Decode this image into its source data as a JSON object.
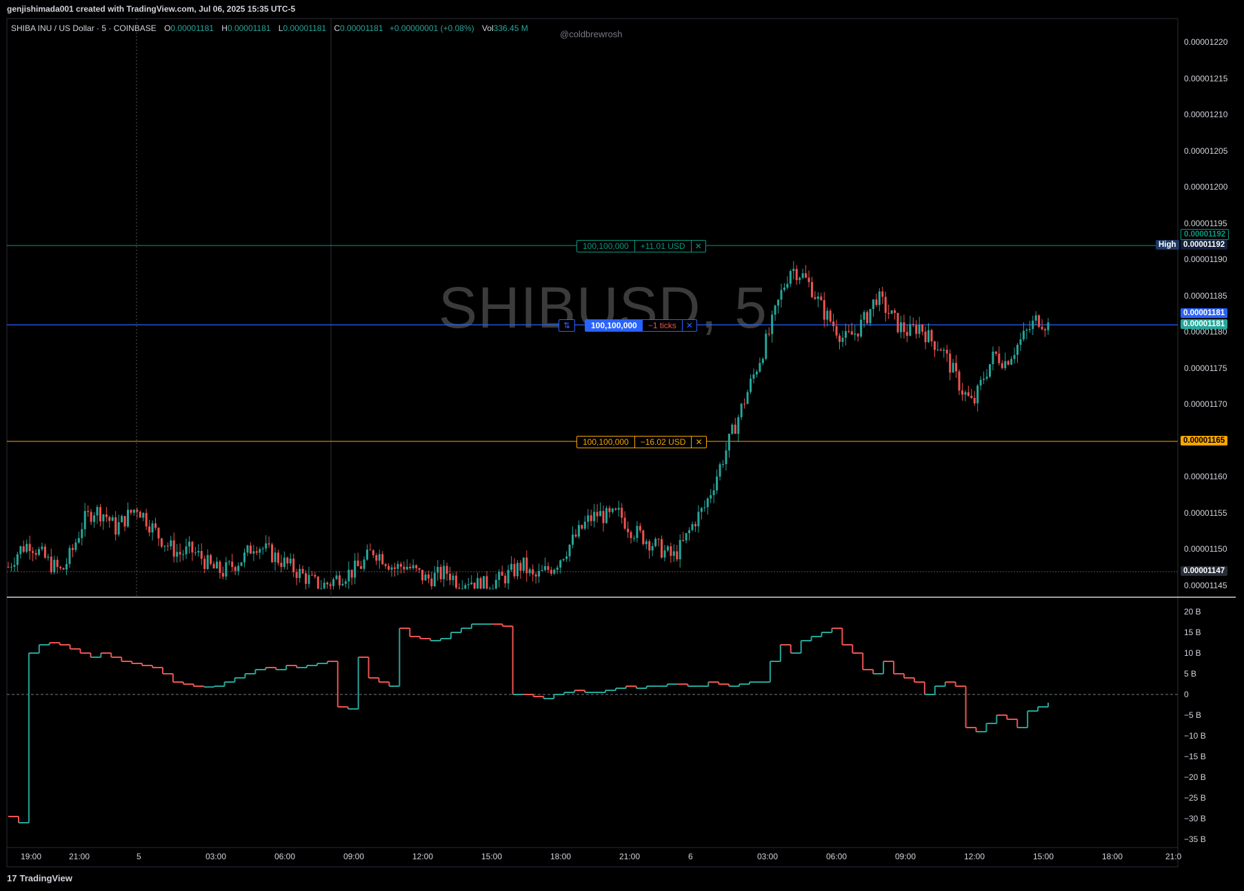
{
  "header": {
    "caption": "genjishimada001 created with TradingView.com, Jul 06, 2025 15:35 UTC-5"
  },
  "legend": {
    "symbol": "SHIBA INU / US Dollar · 5 · COINBASE",
    "o_label": "O",
    "o_value": "0.00001181",
    "h_label": "H",
    "h_value": "0.00001181",
    "l_label": "L",
    "l_value": "0.00001181",
    "c_label": "C",
    "c_value": "0.00001181",
    "change": "+0.00000001 (+0.08%)",
    "vol_label": "Vol",
    "vol_value": "336.45 M"
  },
  "credit": "@coldbrewrosh",
  "watermark": "SHIBUSD, 5",
  "positions": {
    "take_profit": {
      "qty": "100,100,000",
      "pnl": "+11.01 USD",
      "close": "✕",
      "color": "#089981"
    },
    "entry": {
      "icon": "⇅",
      "qty": "100,100,000",
      "pnl": "−1 ticks",
      "close": "✕",
      "color": "#2962ff"
    },
    "stop_loss": {
      "qty": "100,100,000",
      "pnl": "−16.02 USD",
      "close": "✕",
      "color": "#f7a600"
    }
  },
  "price_axis": {
    "ticks": [
      "0.00001220",
      "0.00001215",
      "0.00001210",
      "0.00001205",
      "0.00001200",
      "0.00001195",
      "0.00001190",
      "0.00001185",
      "0.00001180",
      "0.00001175",
      "0.00001170",
      "0.00001165",
      "0.00001160",
      "0.00001155",
      "0.00001150",
      "0.00001145"
    ],
    "tags": {
      "tp_value": "0.00001192",
      "high_label": "High",
      "high_value": "0.00001192",
      "entry_value": "0.00001181",
      "last_value": "0.00001181",
      "sl_value": "0.00001165",
      "low_value": "0.00001147"
    }
  },
  "osc_axis": {
    "ticks": [
      "20 B",
      "15 B",
      "10 B",
      "5 B",
      "0",
      "−5 B",
      "−10 B",
      "−15 B",
      "−20 B",
      "−25 B",
      "−30 B",
      "−35 B"
    ]
  },
  "time_axis": {
    "ticks": [
      "19:00",
      "21:00",
      "5",
      "03:00",
      "06:00",
      "09:00",
      "12:00",
      "15:00",
      "18:00",
      "21:00",
      "6",
      "03:00",
      "06:00",
      "09:00",
      "12:00",
      "15:00",
      "18:00",
      "21:0"
    ]
  },
  "footer": {
    "brand": "TradingView"
  },
  "colors": {
    "up": "#26a69a",
    "down": "#ef5350",
    "grid": "#1e222d"
  },
  "chart_data": {
    "type": "candlestick",
    "price_path": [
      1.1477,
      1.15,
      1.151,
      1.1495,
      1.148,
      1.147,
      1.15,
      1.154,
      1.1555,
      1.155,
      1.153,
      1.1545,
      1.156,
      1.154,
      1.152,
      1.1505,
      1.1495,
      1.15,
      1.149,
      1.1475,
      1.147,
      1.148,
      1.149,
      1.151,
      1.15,
      1.149,
      1.148,
      1.147,
      1.146,
      1.145,
      1.1455,
      1.1465,
      1.147,
      1.148,
      1.15,
      1.149,
      1.1475,
      1.148,
      1.147,
      1.146,
      1.1465,
      1.147,
      1.1455,
      1.146,
      1.145,
      1.1455,
      1.146,
      1.147,
      1.148,
      1.146,
      1.147,
      1.148,
      1.15,
      1.152,
      1.154,
      1.155,
      1.1545,
      1.155,
      1.153,
      1.152,
      1.151,
      1.15,
      1.149,
      1.151,
      1.154,
      1.156,
      1.16,
      1.164,
      1.168,
      1.172,
      1.176,
      1.18,
      1.185,
      1.189,
      1.188,
      1.186,
      1.183,
      1.181,
      1.179,
      1.18,
      1.182,
      1.185,
      1.183,
      1.181,
      1.18,
      1.181,
      1.179,
      1.178,
      1.175,
      1.172,
      1.17,
      1.174,
      1.177,
      1.176,
      1.178,
      1.18,
      1.182,
      1.181
    ],
    "delta_series_B": [
      -29.5,
      -31,
      10,
      12,
      12.5,
      12,
      11,
      10,
      9,
      10,
      9,
      8,
      7.5,
      7,
      6.5,
      5,
      3,
      2.5,
      2,
      1.8,
      2,
      3,
      4,
      5,
      6,
      6.5,
      6,
      7,
      6.5,
      7,
      7.5,
      8,
      -3,
      -3.5,
      9,
      4,
      3,
      2,
      16,
      14,
      13.5,
      13,
      13.5,
      15,
      16,
      17,
      17,
      17,
      16.5,
      0,
      0,
      -0.5,
      -1,
      0,
      0.5,
      1,
      0.5,
      0.5,
      1,
      1.5,
      2,
      1.5,
      2,
      2,
      2.5,
      2.5,
      2,
      2,
      3,
      2.5,
      2,
      2.5,
      3,
      3,
      8,
      12,
      10,
      13,
      14,
      15,
      16,
      12,
      10,
      6,
      5,
      8,
      5,
      4,
      3,
      0,
      2,
      3,
      2,
      -8,
      -9,
      -7,
      -5,
      -6,
      -8,
      -4,
      -3,
      -2
    ],
    "ylim": [
      1.1443,
      1.1224
    ],
    "title": ""
  }
}
